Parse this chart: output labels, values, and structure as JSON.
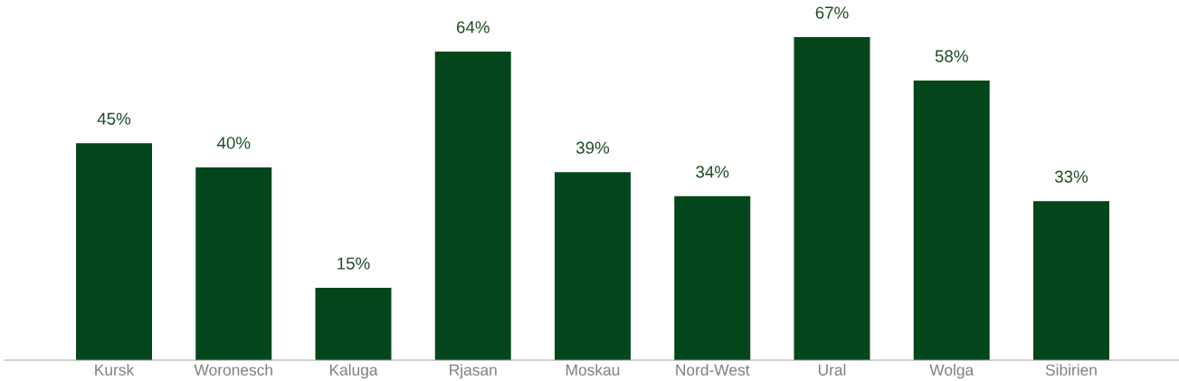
{
  "chart_data": {
    "type": "bar",
    "categories": [
      "Kursk",
      "Woronesch",
      "Kaluga",
      "Rjasan",
      "Moskau",
      "Nord-West",
      "Ural",
      "Wolga",
      "Sibirien"
    ],
    "values": [
      45,
      40,
      15,
      64,
      39,
      34,
      67,
      58,
      33
    ],
    "value_labels": [
      "45%",
      "40%",
      "15%",
      "64%",
      "39%",
      "34%",
      "67%",
      "58%",
      "33%"
    ],
    "color": "#03461c",
    "grid": false,
    "legend": false
  }
}
